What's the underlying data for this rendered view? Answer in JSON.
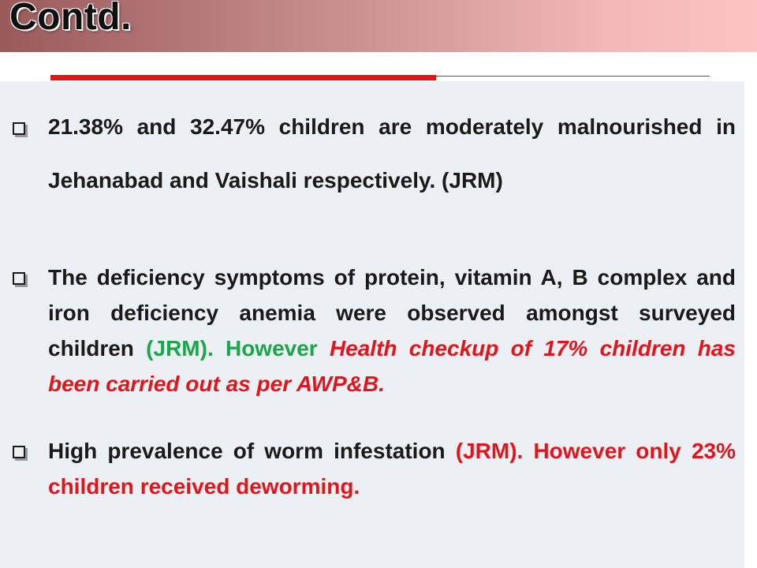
{
  "slide": {
    "title": "Contd.",
    "colors": {
      "accent_red": "#e0161c",
      "green": "#1aa64a",
      "text": "#1a1a1a",
      "panel": "#eceff3"
    },
    "bullets": [
      {
        "segments": [
          {
            "text": "21.38% and 32.47% children are moderately malnourished in Jehanabad and Vaishali respectively. (JRM)"
          }
        ]
      },
      {
        "segments": [
          {
            "text": "The deficiency symptoms of protein, vitamin A, B complex and iron deficiency anemia were observed amongst surveyed children "
          },
          {
            "text": "(JRM)."
          },
          {
            "text": "However "
          },
          {
            "text": "Health checkup of 17% children has been carried out as per AWP&B."
          }
        ]
      },
      {
        "segments": [
          {
            "text": "High prevalence of worm infestation "
          },
          {
            "text": "(JRM)."
          },
          {
            "text": " However only 23% children received deworming."
          }
        ]
      }
    ]
  }
}
